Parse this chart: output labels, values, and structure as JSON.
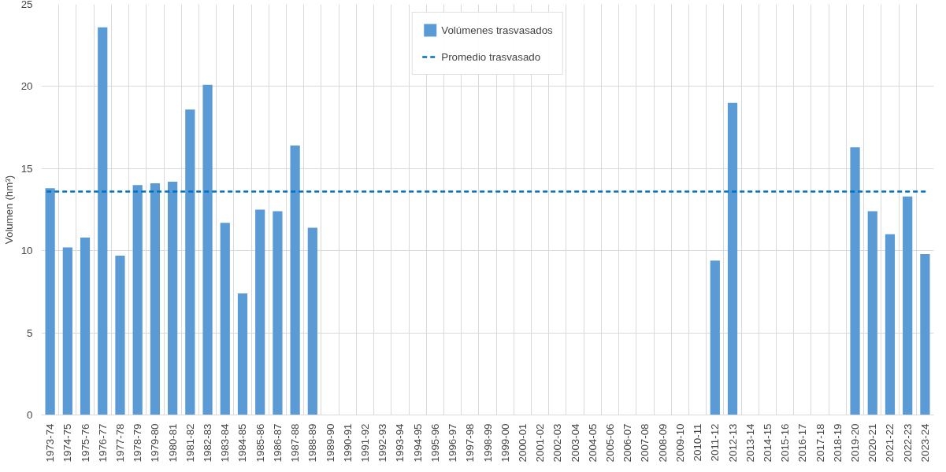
{
  "chart_data": {
    "type": "bar",
    "ylabel": "Volumen (hm³)",
    "categories": [
      "1973-74",
      "1974-75",
      "1975-76",
      "1976-77",
      "1977-78",
      "1978-79",
      "1979-80",
      "1980-81",
      "1981-82",
      "1982-83",
      "1983-84",
      "1984-85",
      "1985-86",
      "1986-87",
      "1987-88",
      "1988-89",
      "1989-90",
      "1990-91",
      "1991-92",
      "1992-93",
      "1993-94",
      "1994-95",
      "1995-96",
      "1996-97",
      "1997-98",
      "1998-99",
      "1999-00",
      "2000-01",
      "2001-02",
      "2002-03",
      "2003-04",
      "2004-05",
      "2005-06",
      "2006-07",
      "2007-08",
      "2008-09",
      "2009-10",
      "2010-11",
      "2011-12",
      "2012-13",
      "2013-14",
      "2014-15",
      "2015-16",
      "2016-17",
      "2017-18",
      "2018-19",
      "2019-20",
      "2020-21",
      "2021-22",
      "2022-23",
      "2023-24"
    ],
    "series": [
      {
        "name": "Volúmenes trasvasados",
        "color": "#5b9bd5",
        "values": [
          13.8,
          10.2,
          10.8,
          23.6,
          9.7,
          14.0,
          14.1,
          14.2,
          18.6,
          20.1,
          11.7,
          7.4,
          12.5,
          12.4,
          16.4,
          11.4,
          null,
          null,
          null,
          null,
          null,
          null,
          null,
          null,
          null,
          null,
          null,
          null,
          null,
          null,
          null,
          null,
          null,
          null,
          null,
          null,
          null,
          null,
          9.4,
          19.0,
          null,
          null,
          null,
          null,
          null,
          null,
          16.3,
          12.4,
          11.0,
          13.3,
          9.8
        ]
      }
    ],
    "ref_lines": [
      {
        "axis": "y",
        "value": 13.6,
        "label": "Promedio trasvasado",
        "color": "#0070c0",
        "line_style": "dashed"
      }
    ],
    "ylim": [
      0,
      25
    ],
    "yticks": [
      0,
      5,
      10,
      15,
      20,
      25
    ],
    "grid": true,
    "legend": "top"
  }
}
